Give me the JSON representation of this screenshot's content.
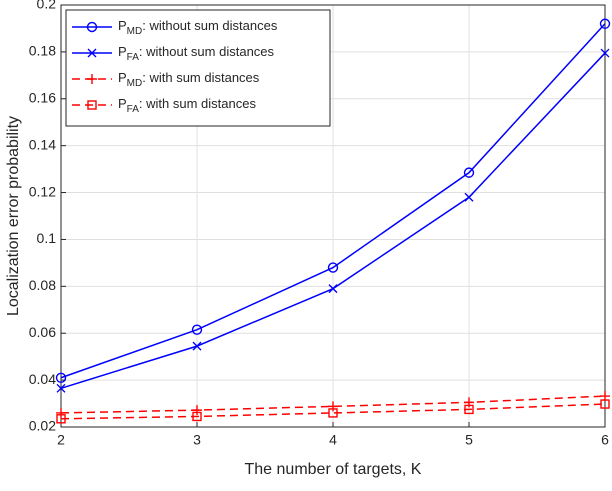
{
  "chart_data": {
    "type": "line",
    "xlabel": "The number of targets, K",
    "ylabel": "Localization error probability",
    "x": [
      2,
      3,
      4,
      5,
      6
    ],
    "xlim": [
      2,
      6
    ],
    "xticks": [
      2,
      3,
      4,
      5,
      6
    ],
    "ylim": [
      0.02,
      0.2
    ],
    "yticks": [
      0.02,
      0.04,
      0.06,
      0.08,
      0.1,
      0.12,
      0.14,
      0.16,
      0.18,
      0.2
    ],
    "grid": true,
    "legend": "upper left",
    "series": [
      {
        "name": "PMD: without sum distances",
        "color": "#0000ff",
        "marker": "circle",
        "dashed": false,
        "values": [
          0.041,
          0.0615,
          0.088,
          0.1285,
          0.192
        ]
      },
      {
        "name": "PFA: without sum distances",
        "color": "#0000ff",
        "marker": "x",
        "dashed": false,
        "values": [
          0.0365,
          0.0545,
          0.079,
          0.118,
          0.1795
        ]
      },
      {
        "name": "PMD: with sum distances",
        "color": "#ff0000",
        "marker": "plus",
        "dashed": true,
        "values": [
          0.026,
          0.0272,
          0.0288,
          0.0305,
          0.0332
        ]
      },
      {
        "name": "PFA: with sum distances",
        "color": "#ff0000",
        "marker": "square",
        "dashed": true,
        "values": [
          0.0235,
          0.0245,
          0.026,
          0.0275,
          0.0298
        ]
      }
    ]
  }
}
